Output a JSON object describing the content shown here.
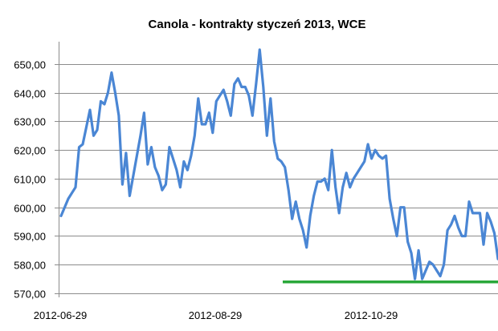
{
  "chart_data": {
    "type": "line",
    "title": "Canola - kontrakty styczeń 2013, WCE",
    "xlabel": "",
    "ylabel": "",
    "ylim": [
      570,
      655
    ],
    "y_ticks": [
      "570,00",
      "580,00",
      "590,00",
      "600,00",
      "610,00",
      "620,00",
      "630,00",
      "640,00",
      "650,00"
    ],
    "x_tick_labels": [
      "2012-06-29",
      "2012-08-29",
      "2012-10-29"
    ],
    "grid": true,
    "legend": "none",
    "colors": {
      "series": "#4a86d4",
      "reference": "#2aa83a",
      "grid": "#8c8c8c"
    },
    "series": [
      {
        "values": [
          597,
          600,
          603,
          605,
          607,
          621,
          622,
          628,
          634,
          625,
          627,
          637,
          636,
          640,
          647,
          640,
          632,
          608,
          619,
          604,
          611,
          618,
          625,
          633,
          615,
          621,
          614,
          611,
          606,
          608,
          621,
          617,
          613,
          607,
          616,
          613,
          618,
          625,
          638,
          629,
          629,
          633,
          626,
          637,
          639,
          641,
          637,
          632,
          643,
          645,
          642,
          642,
          639,
          632,
          643,
          655,
          642,
          625,
          638,
          623,
          617,
          616,
          614,
          606,
          596,
          602,
          596,
          592,
          586,
          597,
          604,
          609,
          609,
          610,
          606,
          620,
          607,
          598,
          607,
          612,
          607,
          610,
          612,
          614,
          616,
          622,
          617,
          620,
          618,
          617,
          618,
          603,
          596,
          590,
          600,
          600,
          588,
          584,
          575,
          585,
          575,
          578,
          581,
          580,
          578,
          576,
          580,
          592,
          594,
          597,
          593,
          590,
          590,
          602,
          598,
          598,
          598,
          587,
          598,
          595,
          591,
          582
        ]
      }
    ],
    "reference_line": {
      "y": 574
    }
  }
}
